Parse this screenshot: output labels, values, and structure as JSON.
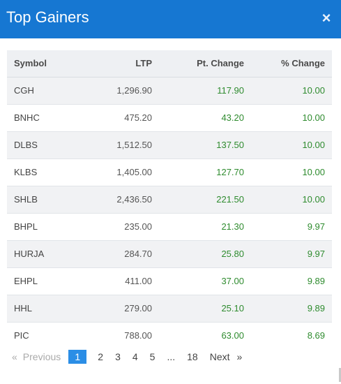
{
  "modal": {
    "title": "Top Gainers",
    "close_icon": "×"
  },
  "table": {
    "columns": [
      "Symbol",
      "LTP",
      "Pt. Change",
      "% Change"
    ],
    "rows": [
      {
        "symbol": "CGH",
        "ltp": "1,296.90",
        "pt_change": "117.90",
        "pct_change": "10.00"
      },
      {
        "symbol": "BNHC",
        "ltp": "475.20",
        "pt_change": "43.20",
        "pct_change": "10.00"
      },
      {
        "symbol": "DLBS",
        "ltp": "1,512.50",
        "pt_change": "137.50",
        "pct_change": "10.00"
      },
      {
        "symbol": "KLBS",
        "ltp": "1,405.00",
        "pt_change": "127.70",
        "pct_change": "10.00"
      },
      {
        "symbol": "SHLB",
        "ltp": "2,436.50",
        "pt_change": "221.50",
        "pct_change": "10.00"
      },
      {
        "symbol": "BHPL",
        "ltp": "235.00",
        "pt_change": "21.30",
        "pct_change": "9.97"
      },
      {
        "symbol": "HURJA",
        "ltp": "284.70",
        "pt_change": "25.80",
        "pct_change": "9.97"
      },
      {
        "symbol": "EHPL",
        "ltp": "411.00",
        "pt_change": "37.00",
        "pct_change": "9.89"
      },
      {
        "symbol": "HHL",
        "ltp": "279.00",
        "pt_change": "25.10",
        "pct_change": "9.89"
      },
      {
        "symbol": "PIC",
        "ltp": "788.00",
        "pt_change": "63.00",
        "pct_change": "8.69"
      }
    ]
  },
  "pagination": {
    "first_arrow": "«",
    "previous": "Previous",
    "pages": [
      "1",
      "2",
      "3",
      "4",
      "5"
    ],
    "active_page": "1",
    "ellipsis": "...",
    "last_page": "18",
    "next": "Next",
    "last_arrow": "»"
  },
  "colors": {
    "header": "#1677d2",
    "positive": "#2e8b2e",
    "active_page": "#2b8ee6"
  }
}
